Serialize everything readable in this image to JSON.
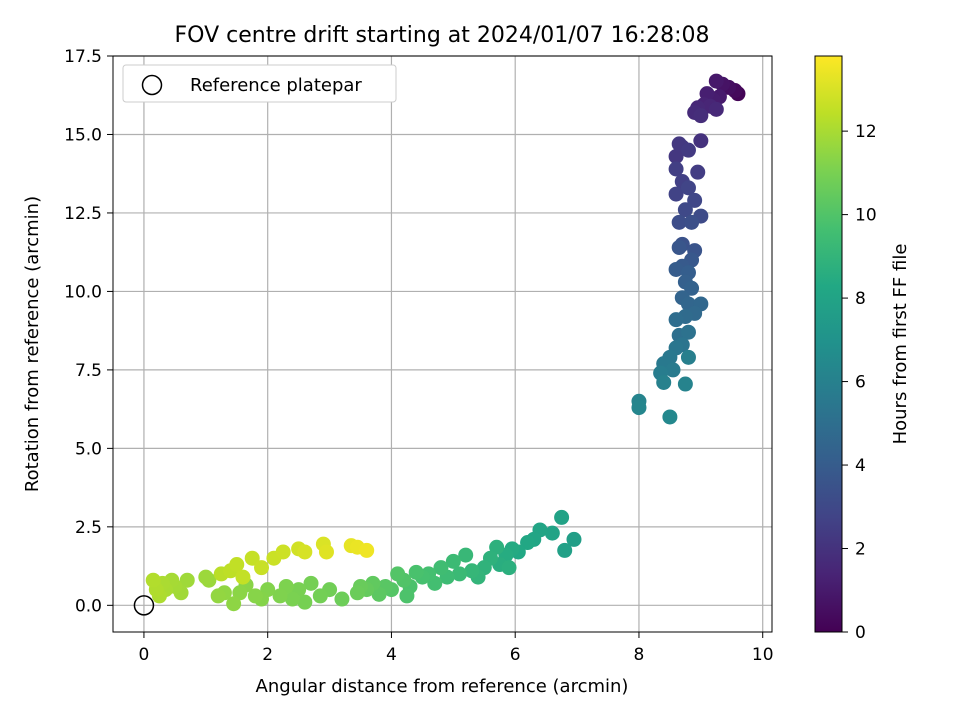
{
  "chart_data": {
    "type": "scatter",
    "title": "FOV centre drift starting at 2024/01/07 16:28:08",
    "xlabel": "Angular distance from reference (arcmin)",
    "ylabel": "Rotation from reference (arcmin)",
    "xlim": [
      -0.5,
      10.15
    ],
    "ylim": [
      -0.85,
      17.5
    ],
    "xticks": [
      0,
      2,
      4,
      6,
      8,
      10
    ],
    "xtick_labels": [
      "0",
      "2",
      "4",
      "6",
      "8",
      "10"
    ],
    "yticks": [
      0.0,
      2.5,
      5.0,
      7.5,
      10.0,
      12.5,
      15.0,
      17.5
    ],
    "ytick_labels": [
      "0.0",
      "2.5",
      "5.0",
      "7.5",
      "10.0",
      "12.5",
      "15.0",
      "17.5"
    ],
    "grid": true,
    "colormap": "viridis",
    "colorbar": {
      "label": "Hours from first FF file",
      "range": [
        0,
        13.8
      ],
      "ticks": [
        0,
        2,
        4,
        6,
        8,
        10,
        12
      ],
      "tick_labels": [
        "0",
        "2",
        "4",
        "6",
        "8",
        "10",
        "12"
      ]
    },
    "legend": {
      "position": "top-left",
      "entries": [
        "Reference platepar"
      ]
    },
    "reference_point": {
      "x": 0,
      "y": 0
    },
    "series": [
      {
        "marker": "filled-circle",
        "points": [
          [
            9.6,
            16.3,
            0.1
          ],
          [
            9.55,
            16.4,
            0.3
          ],
          [
            9.45,
            16.5,
            0.5
          ],
          [
            9.35,
            16.6,
            0.7
          ],
          [
            9.25,
            16.7,
            0.9
          ],
          [
            9.3,
            16.2,
            1.0
          ],
          [
            9.2,
            16.1,
            1.1
          ],
          [
            9.1,
            16.3,
            1.2
          ],
          [
            9.05,
            15.95,
            1.35
          ],
          [
            9.15,
            15.9,
            1.45
          ],
          [
            8.95,
            15.85,
            1.55
          ],
          [
            9.25,
            15.8,
            1.6
          ],
          [
            8.9,
            15.7,
            1.7
          ],
          [
            9.0,
            15.6,
            1.8
          ],
          [
            9.0,
            14.8,
            2.0
          ],
          [
            8.7,
            14.6,
            2.1
          ],
          [
            8.6,
            14.3,
            2.2
          ],
          [
            8.65,
            14.7,
            2.25
          ],
          [
            8.8,
            14.5,
            2.35
          ],
          [
            8.95,
            13.8,
            2.45
          ],
          [
            8.6,
            13.9,
            2.55
          ],
          [
            8.7,
            13.5,
            2.6
          ],
          [
            8.6,
            13.1,
            2.7
          ],
          [
            8.8,
            13.3,
            2.8
          ],
          [
            8.9,
            12.9,
            2.9
          ],
          [
            8.75,
            12.6,
            3.0
          ],
          [
            9.0,
            12.4,
            3.1
          ],
          [
            8.65,
            12.2,
            3.2
          ],
          [
            8.85,
            12.2,
            3.3
          ],
          [
            8.7,
            11.5,
            3.5
          ],
          [
            8.9,
            11.3,
            3.6
          ],
          [
            8.65,
            11.4,
            3.7
          ],
          [
            8.85,
            11.0,
            3.8
          ],
          [
            8.7,
            10.8,
            3.9
          ],
          [
            8.6,
            10.7,
            4.0
          ],
          [
            8.8,
            10.6,
            4.1
          ],
          [
            8.75,
            10.3,
            4.2
          ],
          [
            8.85,
            10.1,
            4.3
          ],
          [
            8.7,
            9.8,
            4.4
          ],
          [
            8.8,
            9.6,
            4.5
          ],
          [
            9.0,
            9.6,
            4.6
          ],
          [
            8.9,
            9.3,
            4.7
          ],
          [
            8.75,
            9.2,
            4.8
          ],
          [
            8.6,
            9.1,
            4.9
          ],
          [
            8.65,
            8.6,
            5.0
          ],
          [
            8.8,
            8.7,
            5.2
          ],
          [
            8.7,
            8.3,
            5.3
          ],
          [
            8.6,
            8.2,
            5.4
          ],
          [
            8.5,
            7.9,
            5.5
          ],
          [
            8.4,
            7.7,
            5.6
          ],
          [
            8.55,
            7.5,
            5.7
          ],
          [
            8.35,
            7.4,
            5.8
          ],
          [
            8.8,
            7.9,
            5.9
          ],
          [
            8.4,
            7.1,
            6.0
          ],
          [
            8.75,
            7.05,
            6.1
          ],
          [
            8.0,
            6.5,
            6.2
          ],
          [
            8.0,
            6.3,
            6.3
          ],
          [
            8.5,
            6.0,
            6.4
          ],
          [
            6.95,
            2.1,
            7.7
          ],
          [
            6.8,
            1.75,
            7.8
          ],
          [
            6.75,
            2.8,
            7.9
          ],
          [
            6.6,
            2.3,
            8.0
          ],
          [
            6.4,
            2.4,
            8.05
          ],
          [
            6.3,
            2.1,
            8.1
          ],
          [
            6.2,
            2.0,
            8.2
          ],
          [
            6.05,
            1.7,
            8.3
          ],
          [
            5.95,
            1.8,
            8.4
          ],
          [
            5.85,
            1.6,
            8.5
          ],
          [
            5.75,
            1.3,
            8.6
          ],
          [
            5.9,
            1.2,
            8.7
          ],
          [
            5.7,
            1.85,
            8.75
          ],
          [
            5.6,
            1.5,
            8.8
          ],
          [
            5.5,
            1.2,
            8.9
          ],
          [
            5.4,
            0.9,
            9.0
          ],
          [
            5.3,
            1.1,
            9.1
          ],
          [
            5.2,
            1.6,
            9.2
          ],
          [
            5.1,
            1.0,
            9.3
          ],
          [
            5.0,
            1.4,
            9.35
          ],
          [
            4.9,
            0.9,
            9.4
          ],
          [
            4.8,
            1.2,
            9.5
          ],
          [
            4.7,
            0.7,
            9.6
          ],
          [
            4.6,
            1.0,
            9.65
          ],
          [
            4.5,
            0.9,
            9.7
          ],
          [
            4.4,
            1.05,
            9.8
          ],
          [
            4.3,
            0.6,
            9.85
          ],
          [
            4.25,
            0.3,
            9.9
          ],
          [
            4.2,
            0.8,
            10.0
          ],
          [
            4.1,
            1.0,
            10.05
          ],
          [
            4.0,
            0.5,
            10.1
          ],
          [
            3.9,
            0.6,
            10.2
          ],
          [
            3.8,
            0.35,
            10.3
          ],
          [
            3.7,
            0.7,
            10.4
          ],
          [
            3.6,
            0.5,
            10.5
          ],
          [
            3.5,
            0.6,
            10.6
          ],
          [
            3.45,
            0.4,
            10.65
          ],
          [
            3.2,
            0.2,
            10.7
          ],
          [
            3.0,
            0.5,
            10.8
          ],
          [
            2.85,
            0.3,
            10.85
          ],
          [
            2.7,
            0.7,
            10.9
          ],
          [
            2.6,
            0.1,
            10.95
          ],
          [
            2.5,
            0.5,
            11.0
          ],
          [
            2.4,
            0.2,
            11.05
          ],
          [
            2.3,
            0.6,
            11.1
          ],
          [
            2.2,
            0.3,
            11.15
          ],
          [
            2.0,
            0.5,
            11.2
          ],
          [
            1.9,
            0.2,
            11.25
          ],
          [
            1.8,
            0.3,
            11.3
          ],
          [
            1.65,
            0.65,
            11.35
          ],
          [
            1.55,
            0.4,
            11.4
          ],
          [
            1.45,
            0.05,
            11.45
          ],
          [
            1.3,
            0.4,
            11.5
          ],
          [
            1.2,
            0.3,
            11.55
          ],
          [
            1.05,
            0.8,
            11.7
          ],
          [
            1.0,
            0.9,
            11.75
          ],
          [
            0.7,
            0.8,
            11.8
          ],
          [
            0.6,
            0.4,
            11.85
          ],
          [
            0.5,
            0.6,
            11.9
          ],
          [
            0.45,
            0.8,
            11.95
          ],
          [
            0.35,
            0.5,
            12.0
          ],
          [
            0.3,
            0.7,
            12.05
          ],
          [
            0.25,
            0.3,
            12.1
          ],
          [
            0.2,
            0.5,
            12.15
          ],
          [
            0.15,
            0.8,
            12.2
          ],
          [
            1.25,
            1.0,
            12.35
          ],
          [
            1.4,
            1.1,
            12.45
          ],
          [
            1.5,
            1.3,
            12.5
          ],
          [
            1.6,
            0.9,
            12.55
          ],
          [
            1.75,
            1.5,
            12.6
          ],
          [
            1.9,
            1.2,
            12.65
          ],
          [
            2.1,
            1.5,
            12.7
          ],
          [
            2.25,
            1.7,
            12.75
          ],
          [
            2.5,
            1.8,
            12.85
          ],
          [
            2.6,
            1.7,
            12.95
          ],
          [
            2.9,
            1.95,
            13.05
          ],
          [
            2.95,
            1.7,
            13.15
          ],
          [
            3.35,
            1.9,
            13.3
          ],
          [
            3.45,
            1.85,
            13.4
          ],
          [
            3.6,
            1.75,
            13.5
          ]
        ]
      }
    ]
  }
}
